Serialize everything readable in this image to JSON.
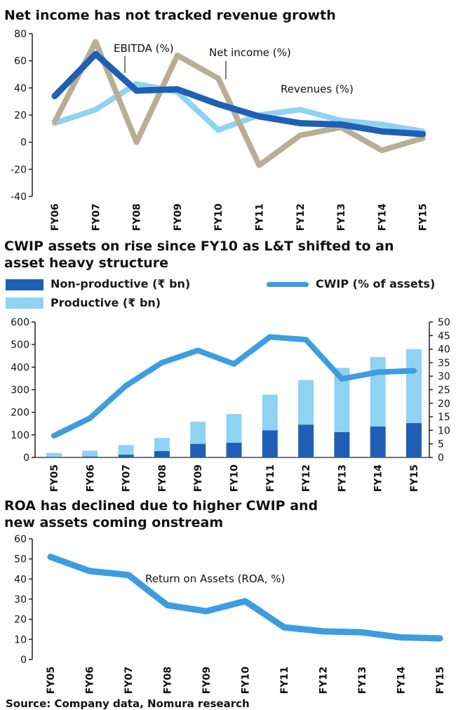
{
  "colors": {
    "revenues": "#8fd3f2",
    "ebitda": "#1f5fb5",
    "net_income": "#b9ae95",
    "non_productive": "#1f5fb5",
    "productive": "#8fd3f2",
    "cwip": "#3d9de0",
    "roa": "#3d9de0",
    "axis": "#222222"
  },
  "source": "Source: Company data, Nomura research",
  "chart_data": [
    {
      "type": "line",
      "title": "Net income has not tracked revenue growth",
      "categories": [
        "FY06",
        "FY07",
        "FY08",
        "FY09",
        "FY10",
        "FY11",
        "FY12",
        "FY13",
        "FY14",
        "FY15"
      ],
      "ylim": [
        -40,
        80
      ],
      "yticks": [
        -40,
        -20,
        0,
        20,
        40,
        60,
        80
      ],
      "series": [
        {
          "name": "Revenues (%)",
          "values": [
            14,
            24,
            43,
            37,
            9,
            20,
            24,
            16,
            13,
            8
          ]
        },
        {
          "name": "Net income (%)",
          "values": [
            15,
            74,
            0,
            64,
            47,
            -17,
            5,
            11,
            -6,
            3
          ]
        },
        {
          "name": "EBITDA (%)",
          "values": [
            34,
            65,
            38,
            39,
            28,
            19,
            14,
            13,
            8,
            6
          ]
        }
      ],
      "annotations": [
        "EBITDA (%)",
        "Net income (%)",
        "Revenues (%)"
      ]
    },
    {
      "type": "bar",
      "title_line1": "CWIP assets on rise since FY10 as L&T shifted to an",
      "title_line2": "asset heavy structure",
      "categories": [
        "FY05",
        "FY06",
        "FY07",
        "FY08",
        "FY09",
        "FY10",
        "FY11",
        "FY12",
        "FY13",
        "FY14",
        "FY15"
      ],
      "ylim": [
        0,
        600
      ],
      "yticks": [
        0,
        100,
        200,
        300,
        400,
        500,
        600
      ],
      "y2lim": [
        0,
        50
      ],
      "y2ticks": [
        0,
        5,
        10,
        15,
        20,
        25,
        30,
        35,
        40,
        45,
        50
      ],
      "legend": [
        "Non-productive (₹ bn)",
        "Productive (₹ bn)",
        "CWIP (% of assets)"
      ],
      "series": [
        {
          "name": "Non-productive (₹ bn)",
          "values": [
            2,
            4,
            12,
            28,
            60,
            65,
            120,
            145,
            112,
            137,
            152
          ]
        },
        {
          "name": "Productive (₹ bn)",
          "values": [
            18,
            26,
            43,
            58,
            98,
            127,
            158,
            198,
            285,
            308,
            328
          ]
        },
        {
          "name": "CWIP (% of assets)",
          "axis": "right",
          "values": [
            8,
            14.5,
            26.5,
            35,
            39.5,
            34.5,
            44.5,
            43.5,
            29,
            31.5,
            32
          ]
        }
      ]
    },
    {
      "type": "line",
      "title_line1": "ROA has declined due to higher CWIP and",
      "title_line2": "new assets coming onstream",
      "categories": [
        "FY05",
        "FY06",
        "FY07",
        "FY08",
        "FY09",
        "FY10",
        "FY11",
        "FY12",
        "FY13",
        "FY14",
        "FY15"
      ],
      "ylim": [
        0,
        60
      ],
      "yticks": [
        0,
        10,
        20,
        30,
        40,
        50,
        60
      ],
      "series": [
        {
          "name": "Return on Assets (ROA, %)",
          "values": [
            51,
            44,
            42,
            27,
            24,
            29,
            16,
            14,
            13.5,
            11,
            10.5
          ]
        }
      ],
      "annotations": [
        "Return on Assets (ROA, %)"
      ]
    }
  ]
}
